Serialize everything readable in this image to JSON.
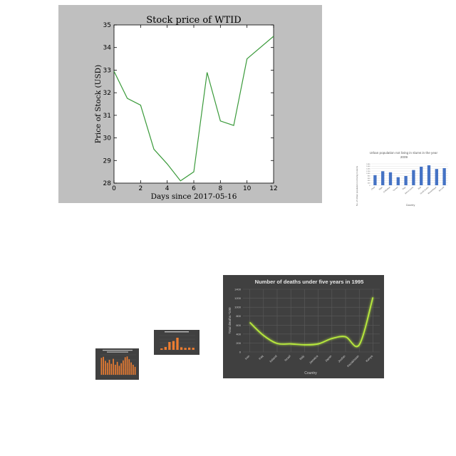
{
  "chart_data": [
    {
      "type": "line",
      "title": "Stock price of WTID",
      "xlabel": "Days since 2017-05-16",
      "ylabel": "Price of Stock (USD)",
      "x": [
        0,
        1,
        2,
        3,
        4,
        5,
        6,
        7,
        8,
        9,
        10,
        12
      ],
      "series": [
        {
          "values": [
            32.95,
            31.75,
            31.45,
            29.5,
            28.85,
            28.1,
            28.5,
            32.9,
            30.75,
            30.55,
            33.5,
            34.5
          ],
          "color": "#3a9a3a"
        }
      ],
      "xlim": [
        0,
        12
      ],
      "ylim": [
        28,
        35
      ],
      "xticks": [
        "0",
        "2",
        "4",
        "6",
        "8",
        "10",
        "12"
      ],
      "yticks": [
        "28",
        "29",
        "30",
        "31",
        "32",
        "33",
        "34",
        "35"
      ],
      "background": "#bfbfbf",
      "plot_background": "#ffffff",
      "grid": false
    },
    {
      "type": "bar",
      "title": "Urban population not living in slums in the year 2009",
      "xlabel": "Country",
      "ylabel": "No. of Urban population not living in slums",
      "categories": [
        "Chad",
        "Niger",
        "Zimbabwe",
        "Guinea",
        "Togo",
        "Sierra Leone",
        "Mali",
        "South Sudan",
        "Mozambique",
        "Burundi"
      ],
      "values": [
        850,
        1180,
        1090,
        680,
        780,
        1280,
        1560,
        1680,
        1370,
        1440
      ],
      "ylim": [
        0,
        1800
      ],
      "yticks": [
        "0",
        "200",
        "400",
        "600",
        "800",
        "1,000",
        "1,200",
        "1,400",
        "1,600",
        "1,800"
      ],
      "color": "#4472c4",
      "grid": true
    },
    {
      "type": "line",
      "title": "Number of deaths under five years in 1995",
      "xlabel": "Country",
      "ylabel": "Total deaths *100",
      "categories": [
        "Iran",
        "Iraq",
        "Ireland",
        "Israel",
        "Italy",
        "Jamaica",
        "Japan",
        "Jordan",
        "Kazakhstan",
        "Kenya"
      ],
      "values": [
        660,
        370,
        190,
        180,
        160,
        180,
        300,
        340,
        160,
        1220
      ],
      "ylim": [
        0,
        1400
      ],
      "yticks": [
        "0",
        "200",
        "400",
        "600",
        "800",
        "1000",
        "1200",
        "1400"
      ],
      "color": "#b8ea3c",
      "background": "#404040",
      "grid": true
    },
    {
      "type": "bar",
      "title": "Population with electricity in 1990",
      "categories": [
        "A",
        "B",
        "C",
        "D",
        "E",
        "F",
        "G",
        "H",
        "I"
      ],
      "values": [
        10,
        20,
        55,
        62,
        85,
        18,
        14,
        16,
        15
      ],
      "ylim": [
        0,
        100
      ],
      "color": "#ed7d31",
      "background": "#404040",
      "grid": true
    },
    {
      "type": "bar",
      "title": "% of children immunized against measles in 1997",
      "categories": [
        "1",
        "2",
        "3",
        "4",
        "5",
        "6",
        "7",
        "8",
        "9",
        "10",
        "11",
        "12",
        "13",
        "14",
        "15",
        "16",
        "17",
        "18"
      ],
      "values": [
        85,
        90,
        70,
        60,
        75,
        55,
        80,
        50,
        65,
        45,
        58,
        72,
        88,
        92,
        78,
        62,
        50,
        40
      ],
      "ylim": [
        0,
        100
      ],
      "color": "#ed7d31",
      "background": "#404040",
      "grid": true
    }
  ]
}
